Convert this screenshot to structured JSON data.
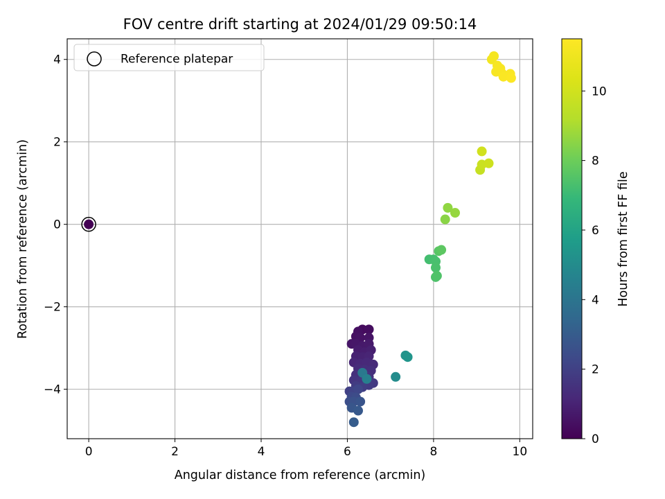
{
  "chart_data": {
    "type": "scatter",
    "title": "FOV centre drift starting at 2024/01/29 09:50:14",
    "xlabel": "Angular distance from reference (arcmin)",
    "ylabel": "Rotation from reference (arcmin)",
    "xlim": [
      -0.5,
      10.3
    ],
    "ylim": [
      -5.2,
      4.5
    ],
    "xticks": [
      0,
      2,
      4,
      6,
      8,
      10
    ],
    "yticks": [
      -4,
      -2,
      0,
      2,
      4
    ],
    "xtick_labels": [
      "0",
      "2",
      "4",
      "6",
      "8",
      "10"
    ],
    "ytick_labels": [
      "−4",
      "−2",
      "0",
      "2",
      "4"
    ],
    "grid": true,
    "colormap": "viridis",
    "colorbar": {
      "label": "Hours from first FF file",
      "range": [
        0,
        11.5
      ],
      "ticks": [
        0,
        2,
        4,
        6,
        8,
        10
      ],
      "tick_labels": [
        "0",
        "2",
        "4",
        "6",
        "8",
        "10"
      ]
    },
    "reference_point": {
      "x": 0,
      "y": 0,
      "hours": 0
    },
    "legend": {
      "position": "top-left",
      "entries": [
        "Reference platepar"
      ]
    },
    "points": [
      {
        "x": 0.0,
        "y": 0.0,
        "h": 0.0
      },
      {
        "x": 6.35,
        "y": -2.55,
        "h": 0.3
      },
      {
        "x": 6.5,
        "y": -2.55,
        "h": 0.35
      },
      {
        "x": 6.25,
        "y": -2.6,
        "h": 0.4
      },
      {
        "x": 6.2,
        "y": -2.72,
        "h": 0.45
      },
      {
        "x": 6.3,
        "y": -2.75,
        "h": 0.5
      },
      {
        "x": 6.5,
        "y": -2.75,
        "h": 0.55
      },
      {
        "x": 6.1,
        "y": -2.9,
        "h": 0.6
      },
      {
        "x": 6.2,
        "y": -2.9,
        "h": 0.65
      },
      {
        "x": 6.35,
        "y": -2.95,
        "h": 0.7
      },
      {
        "x": 6.5,
        "y": -2.9,
        "h": 0.75
      },
      {
        "x": 6.25,
        "y": -3.05,
        "h": 0.8
      },
      {
        "x": 6.4,
        "y": -3.1,
        "h": 0.85
      },
      {
        "x": 6.55,
        "y": -3.05,
        "h": 0.9
      },
      {
        "x": 6.2,
        "y": -3.2,
        "h": 0.95
      },
      {
        "x": 6.35,
        "y": -3.22,
        "h": 1.0
      },
      {
        "x": 6.5,
        "y": -3.2,
        "h": 1.05
      },
      {
        "x": 6.15,
        "y": -3.35,
        "h": 1.1
      },
      {
        "x": 6.3,
        "y": -3.38,
        "h": 1.15
      },
      {
        "x": 6.45,
        "y": -3.35,
        "h": 1.2
      },
      {
        "x": 6.6,
        "y": -3.4,
        "h": 1.25
      },
      {
        "x": 6.25,
        "y": -3.5,
        "h": 1.3
      },
      {
        "x": 6.4,
        "y": -3.52,
        "h": 1.35
      },
      {
        "x": 6.55,
        "y": -3.55,
        "h": 1.4
      },
      {
        "x": 6.2,
        "y": -3.65,
        "h": 1.45
      },
      {
        "x": 6.35,
        "y": -3.65,
        "h": 1.5
      },
      {
        "x": 6.5,
        "y": -3.7,
        "h": 1.55
      },
      {
        "x": 6.15,
        "y": -3.78,
        "h": 1.6
      },
      {
        "x": 6.3,
        "y": -3.8,
        "h": 1.65
      },
      {
        "x": 6.45,
        "y": -3.8,
        "h": 1.7
      },
      {
        "x": 6.6,
        "y": -3.85,
        "h": 1.75
      },
      {
        "x": 6.5,
        "y": -3.9,
        "h": 1.8
      },
      {
        "x": 6.2,
        "y": -3.92,
        "h": 1.85
      },
      {
        "x": 6.35,
        "y": -3.95,
        "h": 1.9
      },
      {
        "x": 6.05,
        "y": -4.05,
        "h": 2.0
      },
      {
        "x": 6.15,
        "y": -4.05,
        "h": 2.1
      },
      {
        "x": 6.25,
        "y": -4.0,
        "h": 2.2
      },
      {
        "x": 6.1,
        "y": -4.18,
        "h": 2.3
      },
      {
        "x": 6.2,
        "y": -4.2,
        "h": 2.4
      },
      {
        "x": 6.05,
        "y": -4.3,
        "h": 2.5
      },
      {
        "x": 6.15,
        "y": -4.3,
        "h": 2.6
      },
      {
        "x": 6.3,
        "y": -4.3,
        "h": 2.7
      },
      {
        "x": 6.1,
        "y": -4.45,
        "h": 2.8
      },
      {
        "x": 6.25,
        "y": -4.52,
        "h": 2.9
      },
      {
        "x": 6.15,
        "y": -4.8,
        "h": 3.0
      },
      {
        "x": 6.35,
        "y": -3.6,
        "h": 4.2
      },
      {
        "x": 6.45,
        "y": -3.75,
        "h": 4.5
      },
      {
        "x": 7.12,
        "y": -3.7,
        "h": 5.0
      },
      {
        "x": 7.35,
        "y": -3.18,
        "h": 5.3
      },
      {
        "x": 7.4,
        "y": -3.22,
        "h": 5.4
      },
      {
        "x": 7.9,
        "y": -0.85,
        "h": 7.2
      },
      {
        "x": 8.0,
        "y": -0.85,
        "h": 7.25
      },
      {
        "x": 8.05,
        "y": -0.9,
        "h": 7.3
      },
      {
        "x": 8.05,
        "y": -1.05,
        "h": 7.35
      },
      {
        "x": 8.05,
        "y": -1.28,
        "h": 7.4
      },
      {
        "x": 8.08,
        "y": -1.25,
        "h": 7.45
      },
      {
        "x": 8.12,
        "y": -0.65,
        "h": 7.6
      },
      {
        "x": 8.18,
        "y": -0.62,
        "h": 7.7
      },
      {
        "x": 8.27,
        "y": 0.12,
        "h": 8.5
      },
      {
        "x": 8.33,
        "y": 0.4,
        "h": 8.6
      },
      {
        "x": 8.5,
        "y": 0.28,
        "h": 8.7
      },
      {
        "x": 9.08,
        "y": 1.32,
        "h": 9.7
      },
      {
        "x": 9.12,
        "y": 1.45,
        "h": 9.8
      },
      {
        "x": 9.28,
        "y": 1.48,
        "h": 9.9
      },
      {
        "x": 9.12,
        "y": 1.77,
        "h": 10.0
      },
      {
        "x": 9.35,
        "y": 4.0,
        "h": 11.1
      },
      {
        "x": 9.4,
        "y": 4.08,
        "h": 11.2
      },
      {
        "x": 9.48,
        "y": 3.85,
        "h": 11.25
      },
      {
        "x": 9.55,
        "y": 3.78,
        "h": 11.3
      },
      {
        "x": 9.45,
        "y": 3.7,
        "h": 11.3
      },
      {
        "x": 9.6,
        "y": 3.65,
        "h": 11.35
      },
      {
        "x": 9.62,
        "y": 3.58,
        "h": 11.4
      },
      {
        "x": 9.78,
        "y": 3.65,
        "h": 11.4
      },
      {
        "x": 9.8,
        "y": 3.55,
        "h": 11.45
      }
    ]
  }
}
